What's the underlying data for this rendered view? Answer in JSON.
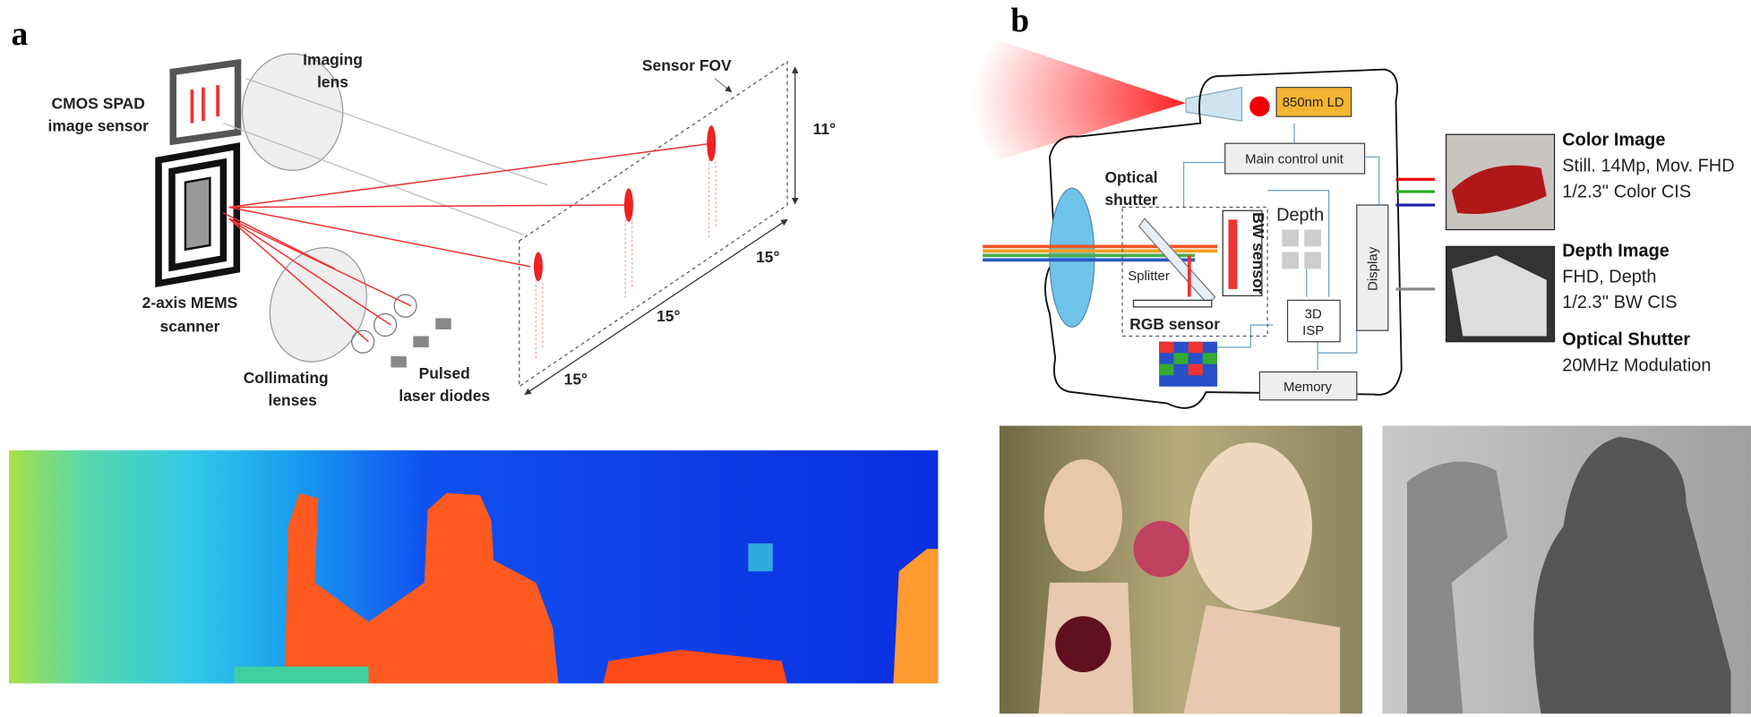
{
  "panel_a": {
    "letter": "a",
    "sensor_label": [
      "CMOS SPAD",
      "image sensor"
    ],
    "imaging_lens_label": [
      "Imaging",
      "lens"
    ],
    "fov_label": "Sensor FOV",
    "vertical_angle": "11°",
    "horizontal_angles": [
      "15°",
      "15°",
      "15°"
    ],
    "scanner_label": [
      "2-axis MEMS",
      "scanner"
    ],
    "collimating_label": [
      "Collimating",
      "lenses"
    ],
    "laser_label": [
      "Pulsed",
      "laser diodes"
    ]
  },
  "panel_b": {
    "letter": "b",
    "laser": "850nm LD",
    "control": "Main control unit",
    "shutter_label": [
      "Optical",
      "shutter"
    ],
    "depth": "Depth",
    "bw_sensor": "BW sensor",
    "splitter": "Splitter",
    "rgb_sensor": "RGB sensor",
    "isp": [
      "3D",
      "ISP"
    ],
    "display": "Display",
    "memory": "Memory",
    "specs": [
      {
        "title": "Color Image",
        "lines": [
          "Still. 14Mp, Mov. FHD",
          "1/2.3'' Color CIS"
        ]
      },
      {
        "title": "Depth Image",
        "lines": [
          "FHD, Depth",
          "1/2.3'' BW CIS"
        ]
      },
      {
        "title": "Optical Shutter",
        "lines": [
          "20MHz Modulation"
        ]
      }
    ]
  }
}
